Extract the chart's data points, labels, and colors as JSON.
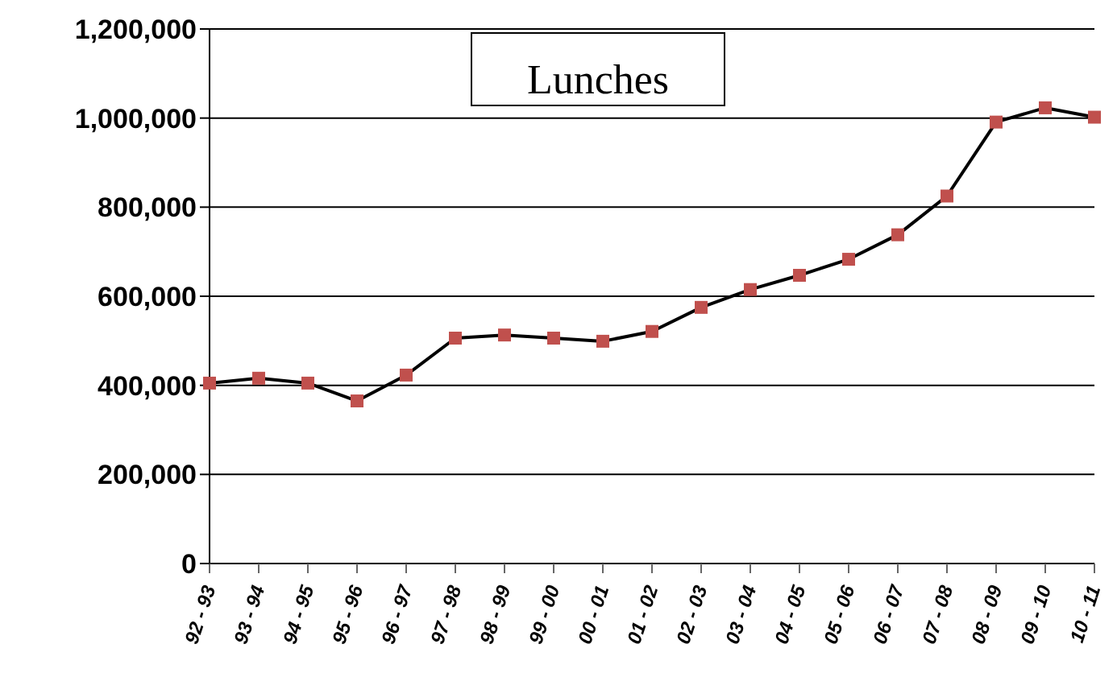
{
  "chart_data": {
    "type": "line",
    "title": "Lunches",
    "categories": [
      "92 - 93",
      "93 - 94",
      "94 - 95",
      "95 - 96",
      "96 - 97",
      "97 - 98",
      "98 - 99",
      "99 - 00",
      "00 - 01",
      "01 - 02",
      "02 - 03",
      "03 - 04",
      "04 - 05",
      "05 - 06",
      "06 - 07",
      "07 - 08",
      "08 - 09",
      "09 - 10",
      "10 - 11"
    ],
    "series": [
      {
        "color": "#000000",
        "values": [
          405000,
          416000,
          405000,
          365000,
          423000,
          506000,
          513000,
          506000,
          499000,
          521000,
          575000,
          615000,
          647000,
          683000,
          738000,
          825000,
          991000,
          1023000,
          1002000
        ]
      }
    ],
    "ylim": [
      0,
      1200000
    ],
    "yticks": [
      0,
      {
        "value": 200000,
        "label": "200,000"
      },
      {
        "value": 400000,
        "label": "400,000"
      },
      {
        "value": 600000,
        "label": "600,000"
      },
      {
        "value": 800000,
        "label": "800,000"
      },
      {
        "value": 1000000,
        "label": "1,000,000"
      },
      {
        "value": 1200000,
        "label": "1,200,000"
      }
    ],
    "grid": "y",
    "marker": "square"
  }
}
